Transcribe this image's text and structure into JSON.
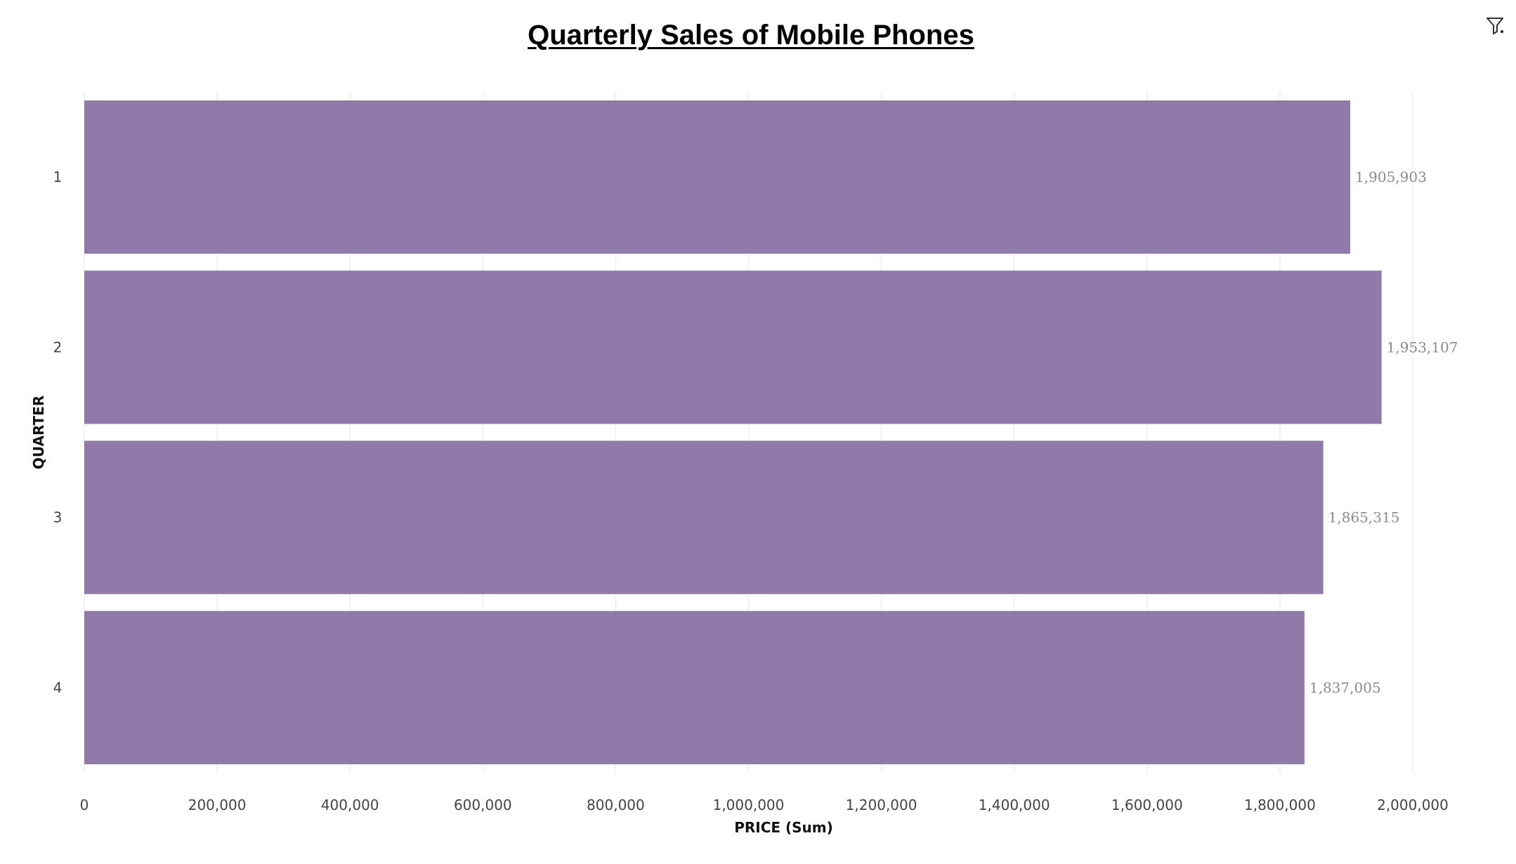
{
  "toolbar": {
    "filter_icon": "filter-icon"
  },
  "chart_data": {
    "type": "bar",
    "orientation": "horizontal",
    "title": "Quarterly Sales of Mobile Phones",
    "xlabel": "PRICE (Sum)",
    "ylabel": "QUARTER",
    "categories": [
      "1",
      "2",
      "3",
      "4"
    ],
    "values": [
      1905903,
      1953107,
      1865315,
      1837005
    ],
    "value_labels": [
      "1,905,903",
      "1,953,107",
      "1,865,315",
      "1,837,005"
    ],
    "xlim": [
      0,
      2000000
    ],
    "x_ticks": [
      0,
      200000,
      400000,
      600000,
      800000,
      1000000,
      1200000,
      1400000,
      1600000,
      1800000,
      2000000
    ],
    "x_tick_labels": [
      "0",
      "200,000",
      "400,000",
      "600,000",
      "800,000",
      "1,000,000",
      "1,200,000",
      "1,400,000",
      "1,600,000",
      "1,800,000",
      "2,000,000"
    ],
    "grid": true,
    "legend": "none",
    "colors": {
      "bar": "#8f7aaa",
      "grid": "#eeeeee",
      "value_label": "#8a8a8a"
    }
  }
}
